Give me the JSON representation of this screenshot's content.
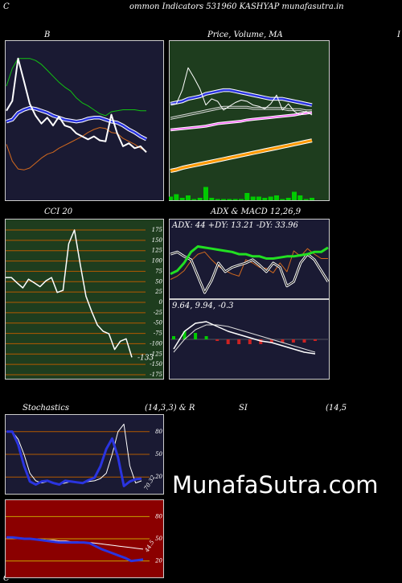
{
  "header": {
    "left_letter": "C",
    "title": "ommon  Indicators 531960  KASHYAP munafasutra.in"
  },
  "labels": {
    "bb": "B",
    "price": "Price,  Volume,  MA",
    "right_edge": "I",
    "cci": "CCI 20",
    "adx_macd": "ADX  & MACD 12,26,9",
    "adx_readout": "ADX: 44  +DY: 13.21 -DY: 33.96",
    "macd_readout": "9.64,  9.94,  -0.3",
    "stoch_left": "Stochastics",
    "stoch_mid": "(14,3,3) & R",
    "rsi_label": "SI",
    "rsi_params": "(14,5",
    "bottom_letter": "C",
    "watermark": "MunafaSutra.com"
  },
  "colors": {
    "page_bg": "#000000",
    "panel_navy": "#1a1a33",
    "panel_green": "#1e3d1e",
    "panel_red": "#8b0000",
    "grid_orange": "#b35900",
    "grid_yellow": "#c8a000",
    "line_white": "#ffffff",
    "line_blue": "#2a34e0",
    "line_green": "#12c212",
    "line_orange": "#d2691e",
    "ma_orange": "#ff9900",
    "ma_pink": "#ff66ff",
    "adx_green": "#22e022",
    "histogram_green": "#00cc00"
  },
  "chart_data": [
    {
      "type": "line",
      "name": "bollinger",
      "x": [
        0,
        1,
        2,
        3,
        4,
        5,
        6,
        7,
        8,
        9,
        10,
        11,
        12,
        13,
        14,
        15,
        16,
        17,
        18,
        19,
        20,
        21,
        22,
        23,
        24
      ],
      "series": [
        {
          "role": "price",
          "values": [
            43.5,
            44.5,
            48.8,
            46.5,
            44.2,
            43.0,
            42.2,
            42.8,
            42.0,
            42.9,
            42.0,
            41.8,
            41.2,
            40.9,
            40.6,
            40.9,
            40.5,
            40.4,
            43.1,
            41.2,
            39.9,
            40.2,
            39.7,
            39.9,
            39.3
          ]
        },
        {
          "role": "upper",
          "values": [
            46.0,
            47.8,
            48.8,
            48.8,
            48.8,
            48.6,
            48.2,
            47.6,
            47.0,
            46.4,
            45.9,
            45.5,
            44.8,
            44.3,
            44.0,
            43.6,
            43.2,
            43.0,
            43.4,
            43.5,
            43.6,
            43.6,
            43.6,
            43.5,
            43.5
          ]
        },
        {
          "role": "middle",
          "values": [
            42.4,
            42.6,
            43.3,
            43.6,
            43.8,
            43.7,
            43.5,
            43.3,
            43.0,
            42.8,
            42.6,
            42.5,
            42.4,
            42.5,
            42.7,
            42.8,
            42.8,
            42.6,
            42.4,
            42.3,
            42.0,
            41.6,
            41.3,
            40.9,
            40.6
          ]
        },
        {
          "role": "lower",
          "values": [
            40.1,
            38.4,
            37.6,
            37.5,
            37.7,
            38.2,
            38.7,
            39.1,
            39.3,
            39.7,
            40.0,
            40.3,
            40.6,
            40.9,
            41.3,
            41.6,
            41.8,
            41.7,
            41.3,
            41.2,
            40.7,
            40.4,
            40.1,
            39.7,
            39.4
          ]
        }
      ]
    },
    {
      "type": "line",
      "name": "price_volume_ma",
      "title": "Price,  Volume,  MA",
      "x": [
        0,
        1,
        2,
        3,
        4,
        5,
        6,
        7,
        8,
        9,
        10,
        11,
        12,
        13,
        14,
        15,
        16,
        17,
        18,
        19,
        20,
        21,
        22,
        23,
        24
      ],
      "series": [
        {
          "role": "price",
          "values": [
            41.4,
            41.4,
            42.5,
            44.3,
            43.5,
            42.6,
            41.3,
            41.8,
            41.6,
            40.9,
            41.2,
            41.5,
            41.7,
            41.6,
            41.3,
            41.2,
            41.0,
            41.4,
            42.1,
            40.9,
            41.4,
            40.8,
            40.5,
            40.8,
            40.5
          ]
        },
        {
          "role": "ma_blue",
          "values": [
            41.4,
            41.5,
            41.6,
            41.8,
            41.9,
            42.0,
            42.2,
            42.3,
            42.4,
            42.5,
            42.5,
            42.4,
            42.3,
            42.2,
            42.1,
            42.0,
            41.9,
            41.8,
            41.8,
            41.8,
            41.7,
            41.6,
            41.5,
            41.4,
            41.3
          ]
        },
        {
          "role": "ma_white",
          "values": [
            40.3,
            40.4,
            40.5,
            40.6,
            40.7,
            40.8,
            40.9,
            41.0,
            41.1,
            41.2,
            41.2,
            41.2,
            41.2,
            41.2,
            41.1,
            41.1,
            41.1,
            41.1,
            41.1,
            41.1,
            41.0,
            41.0,
            41.0,
            40.9,
            40.9
          ]
        },
        {
          "role": "ma_pink",
          "values": [
            39.3,
            39.35,
            39.4,
            39.45,
            39.5,
            39.55,
            39.6,
            39.7,
            39.8,
            39.85,
            39.9,
            39.95,
            40.0,
            40.1,
            40.15,
            40.2,
            40.25,
            40.3,
            40.35,
            40.4,
            40.45,
            40.5,
            40.6,
            40.65,
            40.7
          ]
        },
        {
          "role": "ma_orange",
          "values": [
            36.0,
            36.1,
            36.25,
            36.35,
            36.45,
            36.55,
            36.65,
            36.75,
            36.85,
            36.95,
            37.05,
            37.15,
            37.25,
            37.35,
            37.45,
            37.55,
            37.65,
            37.75,
            37.85,
            37.95,
            38.05,
            38.15,
            38.25,
            38.35,
            38.45
          ]
        },
        {
          "role": "volume",
          "values": [
            3,
            5,
            2,
            4,
            1,
            2,
            11,
            2,
            1,
            1,
            1,
            1,
            1,
            6,
            3,
            3,
            2,
            3,
            4,
            1,
            2,
            7,
            4,
            1,
            2
          ]
        }
      ]
    },
    {
      "type": "line",
      "name": "cci",
      "title": "CCI 20",
      "x": [
        0,
        1,
        2,
        3,
        4,
        5,
        6,
        7,
        8,
        9,
        10,
        11,
        12,
        13,
        14,
        15,
        16,
        17,
        18,
        19,
        20,
        21,
        22
      ],
      "series": [
        {
          "role": "cci",
          "values": [
            60,
            60,
            47,
            35,
            56,
            47,
            38,
            52,
            60,
            24,
            29,
            142,
            175,
            92,
            15,
            -22,
            -55,
            -70,
            -76,
            -114,
            -94,
            -88,
            -133
          ]
        }
      ],
      "ylim": [
        -175,
        175
      ],
      "yticks": [
        "175",
        "150",
        "125",
        "100",
        "75",
        "50",
        "25",
        "0",
        "-25",
        "-50",
        "-75",
        "-100",
        "-125",
        "-150",
        "-175"
      ],
      "last_value_label": "-133"
    },
    {
      "type": "line",
      "name": "adx",
      "series": [
        {
          "name": "ADX",
          "values": [
            20,
            23,
            30,
            40,
            45,
            44,
            43,
            42,
            41,
            40,
            38,
            38,
            36,
            36,
            34,
            34,
            35,
            36,
            36,
            37,
            38,
            40,
            40,
            44
          ]
        },
        {
          "name": "+DY",
          "values": [
            38,
            40,
            36,
            33,
            18,
            3,
            14,
            30,
            22,
            26,
            28,
            30,
            33,
            28,
            22,
            30,
            26,
            9,
            13,
            30,
            38,
            33,
            23,
            13
          ]
        },
        {
          "name": "-DY",
          "values": [
            15,
            18,
            23,
            32,
            38,
            40,
            33,
            27,
            23,
            20,
            18,
            33,
            30,
            26,
            25,
            21,
            30,
            22,
            41,
            36,
            43,
            38,
            34,
            34
          ]
        }
      ],
      "ylim": [
        0,
        60
      ]
    },
    {
      "type": "bar",
      "name": "macd",
      "series": [
        {
          "name": "MACD",
          "values": [
            -0.6,
            0.5,
            1.0,
            1.1,
            0.8,
            0.5,
            0.3,
            0.1,
            -0.1,
            -0.2,
            -0.4,
            -0.6,
            -0.8,
            -0.9
          ]
        },
        {
          "name": "Signal",
          "values": [
            -0.8,
            0.0,
            0.6,
            0.9,
            0.9,
            0.8,
            0.6,
            0.4,
            0.2,
            0.0,
            -0.2,
            -0.4,
            -0.6,
            -0.8
          ]
        },
        {
          "name": "Hist",
          "values": [
            0.2,
            0.5,
            0.4,
            0.2,
            -0.1,
            -0.3,
            -0.3,
            -0.3,
            -0.3,
            -0.2,
            -0.2,
            -0.2,
            -0.2,
            -0.1
          ]
        }
      ],
      "ylim": [
        -1.5,
        1.5
      ]
    },
    {
      "type": "line",
      "name": "stochastics",
      "title": "Stochastics",
      "series": [
        {
          "role": "K",
          "values": [
            80,
            80,
            63,
            35,
            14,
            10,
            14,
            15,
            12,
            10,
            15,
            14,
            13,
            12,
            16,
            19,
            34,
            57,
            71,
            46,
            8,
            14,
            17,
            18
          ]
        },
        {
          "role": "D",
          "values": [
            80,
            80,
            70,
            50,
            25,
            15,
            12,
            14,
            13,
            11,
            12,
            14,
            13,
            12,
            14,
            15,
            18,
            25,
            50,
            80,
            90,
            35,
            12,
            15
          ]
        }
      ],
      "ylim": [
        0,
        100
      ],
      "yticks": [
        "80",
        "50",
        "20"
      ],
      "last_value_label": "70.32"
    },
    {
      "type": "line",
      "name": "rsi",
      "series": [
        {
          "role": "rsi",
          "values": [
            52,
            52,
            51,
            50,
            50,
            49,
            48,
            47,
            46,
            45,
            45,
            45,
            45,
            45,
            44,
            40,
            36,
            33,
            30,
            27,
            24,
            20,
            21,
            22
          ]
        },
        {
          "role": "ma",
          "values": [
            51,
            51,
            51,
            50,
            50,
            50,
            49,
            48,
            48,
            47,
            47,
            46,
            46,
            45,
            45,
            44,
            43,
            42,
            41,
            40,
            39,
            38,
            37,
            36
          ]
        }
      ],
      "ylim": [
        0,
        100
      ],
      "yticks": [
        "80",
        "50",
        "20"
      ],
      "last_value_label": "44.5"
    }
  ]
}
